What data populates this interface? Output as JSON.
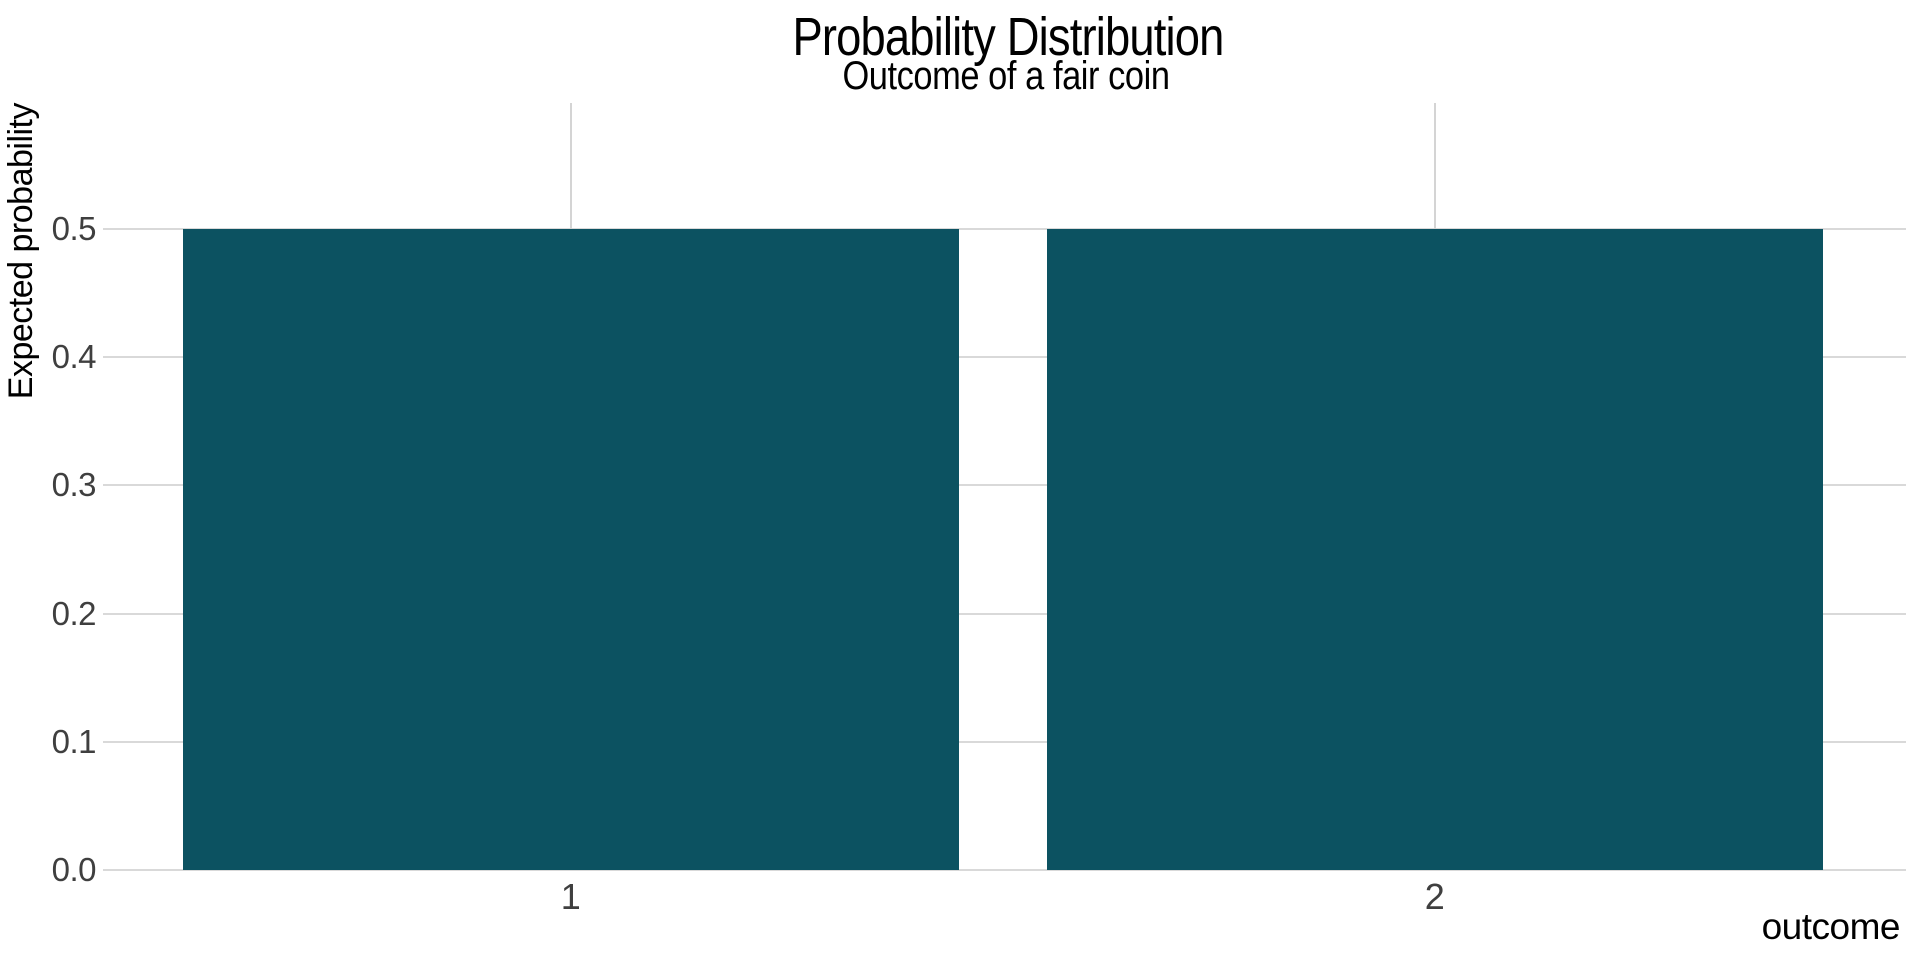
{
  "title": "Probability Distribution",
  "subtitle": "Outcome of a fair coin",
  "colors": {
    "bar": "#0C5261",
    "grid_horizontal": "#D9D9D9",
    "grid_vertical": "#D4D4D4",
    "tick_text": "#3F3F3F",
    "label_text": "#000000",
    "background": "#FFFFFF"
  },
  "chart_data": {
    "type": "bar",
    "title": "Probability Distribution",
    "subtitle": "Outcome of a fair coin",
    "xlabel": "outcome",
    "ylabel": "Expected probability",
    "categories": [
      "1",
      "2"
    ],
    "values": [
      0.5,
      0.5
    ],
    "yticks": [
      0.0,
      0.1,
      0.2,
      0.3,
      0.4,
      0.5
    ],
    "ytick_labels": [
      "0.0",
      "0.1",
      "0.2",
      "0.3",
      "0.4",
      "0.5"
    ],
    "ylim": [
      0,
      0.6
    ],
    "grid": "horizontal major lines plus vertical line at each category center",
    "legend": "none",
    "bar_color": "#0C5261",
    "bar_relative_width": 0.9
  }
}
